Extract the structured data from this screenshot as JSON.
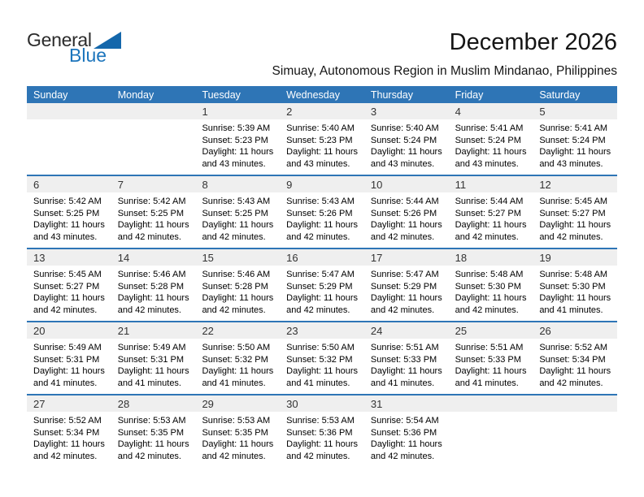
{
  "logo": {
    "part1": "General",
    "part2": "Blue"
  },
  "header": {
    "title": "December 2026",
    "subtitle": "Simuay, Autonomous Region in Muslim Mindanao, Philippines"
  },
  "colors": {
    "header_bg": "#2e75b6",
    "number_strip_bg": "#efefef",
    "accent_blue": "#1c75bc",
    "logo_triangle": "#1467ab"
  },
  "calendar": {
    "day_headers": [
      "Sunday",
      "Monday",
      "Tuesday",
      "Wednesday",
      "Thursday",
      "Friday",
      "Saturday"
    ],
    "labels": {
      "sunrise": "Sunrise:",
      "sunset": "Sunset:",
      "daylight": "Daylight:"
    },
    "weeks": [
      [
        null,
        null,
        {
          "day": "1",
          "sunrise": "5:39 AM",
          "sunset": "5:23 PM",
          "daylight": "11 hours and 43 minutes."
        },
        {
          "day": "2",
          "sunrise": "5:40 AM",
          "sunset": "5:23 PM",
          "daylight": "11 hours and 43 minutes."
        },
        {
          "day": "3",
          "sunrise": "5:40 AM",
          "sunset": "5:24 PM",
          "daylight": "11 hours and 43 minutes."
        },
        {
          "day": "4",
          "sunrise": "5:41 AM",
          "sunset": "5:24 PM",
          "daylight": "11 hours and 43 minutes."
        },
        {
          "day": "5",
          "sunrise": "5:41 AM",
          "sunset": "5:24 PM",
          "daylight": "11 hours and 43 minutes."
        }
      ],
      [
        {
          "day": "6",
          "sunrise": "5:42 AM",
          "sunset": "5:25 PM",
          "daylight": "11 hours and 43 minutes."
        },
        {
          "day": "7",
          "sunrise": "5:42 AM",
          "sunset": "5:25 PM",
          "daylight": "11 hours and 42 minutes."
        },
        {
          "day": "8",
          "sunrise": "5:43 AM",
          "sunset": "5:25 PM",
          "daylight": "11 hours and 42 minutes."
        },
        {
          "day": "9",
          "sunrise": "5:43 AM",
          "sunset": "5:26 PM",
          "daylight": "11 hours and 42 minutes."
        },
        {
          "day": "10",
          "sunrise": "5:44 AM",
          "sunset": "5:26 PM",
          "daylight": "11 hours and 42 minutes."
        },
        {
          "day": "11",
          "sunrise": "5:44 AM",
          "sunset": "5:27 PM",
          "daylight": "11 hours and 42 minutes."
        },
        {
          "day": "12",
          "sunrise": "5:45 AM",
          "sunset": "5:27 PM",
          "daylight": "11 hours and 42 minutes."
        }
      ],
      [
        {
          "day": "13",
          "sunrise": "5:45 AM",
          "sunset": "5:27 PM",
          "daylight": "11 hours and 42 minutes."
        },
        {
          "day": "14",
          "sunrise": "5:46 AM",
          "sunset": "5:28 PM",
          "daylight": "11 hours and 42 minutes."
        },
        {
          "day": "15",
          "sunrise": "5:46 AM",
          "sunset": "5:28 PM",
          "daylight": "11 hours and 42 minutes."
        },
        {
          "day": "16",
          "sunrise": "5:47 AM",
          "sunset": "5:29 PM",
          "daylight": "11 hours and 42 minutes."
        },
        {
          "day": "17",
          "sunrise": "5:47 AM",
          "sunset": "5:29 PM",
          "daylight": "11 hours and 42 minutes."
        },
        {
          "day": "18",
          "sunrise": "5:48 AM",
          "sunset": "5:30 PM",
          "daylight": "11 hours and 42 minutes."
        },
        {
          "day": "19",
          "sunrise": "5:48 AM",
          "sunset": "5:30 PM",
          "daylight": "11 hours and 41 minutes."
        }
      ],
      [
        {
          "day": "20",
          "sunrise": "5:49 AM",
          "sunset": "5:31 PM",
          "daylight": "11 hours and 41 minutes."
        },
        {
          "day": "21",
          "sunrise": "5:49 AM",
          "sunset": "5:31 PM",
          "daylight": "11 hours and 41 minutes."
        },
        {
          "day": "22",
          "sunrise": "5:50 AM",
          "sunset": "5:32 PM",
          "daylight": "11 hours and 41 minutes."
        },
        {
          "day": "23",
          "sunrise": "5:50 AM",
          "sunset": "5:32 PM",
          "daylight": "11 hours and 41 minutes."
        },
        {
          "day": "24",
          "sunrise": "5:51 AM",
          "sunset": "5:33 PM",
          "daylight": "11 hours and 41 minutes."
        },
        {
          "day": "25",
          "sunrise": "5:51 AM",
          "sunset": "5:33 PM",
          "daylight": "11 hours and 41 minutes."
        },
        {
          "day": "26",
          "sunrise": "5:52 AM",
          "sunset": "5:34 PM",
          "daylight": "11 hours and 42 minutes."
        }
      ],
      [
        {
          "day": "27",
          "sunrise": "5:52 AM",
          "sunset": "5:34 PM",
          "daylight": "11 hours and 42 minutes."
        },
        {
          "day": "28",
          "sunrise": "5:53 AM",
          "sunset": "5:35 PM",
          "daylight": "11 hours and 42 minutes."
        },
        {
          "day": "29",
          "sunrise": "5:53 AM",
          "sunset": "5:35 PM",
          "daylight": "11 hours and 42 minutes."
        },
        {
          "day": "30",
          "sunrise": "5:53 AM",
          "sunset": "5:36 PM",
          "daylight": "11 hours and 42 minutes."
        },
        {
          "day": "31",
          "sunrise": "5:54 AM",
          "sunset": "5:36 PM",
          "daylight": "11 hours and 42 minutes."
        },
        null,
        null
      ]
    ]
  }
}
